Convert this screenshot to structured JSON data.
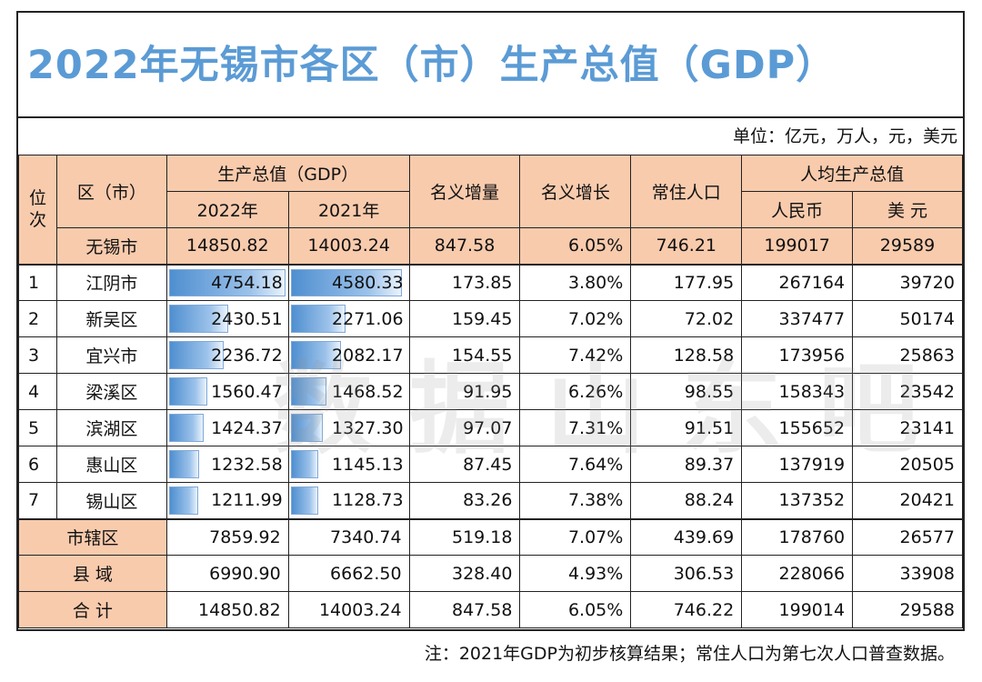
{
  "title": "2022年无锡市各区（市）生产总值（GDP）",
  "unit_note": "单位：亿元，万人，元，美元",
  "headers": {
    "rank": "位次",
    "district": "区（市）",
    "gdp": "生产总值（GDP）",
    "y2022": "2022年",
    "y2021": "2021年",
    "nominal_increase": "名义增量",
    "nominal_growth": "名义增长",
    "population": "常住人口",
    "per_capita": "人均生产总值",
    "rmb": "人民币",
    "usd": "美 元"
  },
  "city_total": {
    "name": "无锡市",
    "gdp2022": "14850.82",
    "gdp2021": "14003.24",
    "inc": "847.58",
    "growth": "6.05%",
    "pop": "746.21",
    "rmb": "199017",
    "usd": "29589"
  },
  "rows": [
    {
      "rank": "1",
      "name": "江阴市",
      "gdp2022": "4754.18",
      "gdp2021": "4580.33",
      "inc": "173.85",
      "growth": "3.80%",
      "pop": "177.95",
      "rmb": "267164",
      "usd": "39720"
    },
    {
      "rank": "2",
      "name": "新吴区",
      "gdp2022": "2430.51",
      "gdp2021": "2271.06",
      "inc": "159.45",
      "growth": "7.02%",
      "pop": "72.02",
      "rmb": "337477",
      "usd": "50174"
    },
    {
      "rank": "3",
      "name": "宜兴市",
      "gdp2022": "2236.72",
      "gdp2021": "2082.17",
      "inc": "154.55",
      "growth": "7.42%",
      "pop": "128.58",
      "rmb": "173956",
      "usd": "25863"
    },
    {
      "rank": "4",
      "name": "梁溪区",
      "gdp2022": "1560.47",
      "gdp2021": "1468.52",
      "inc": "91.95",
      "growth": "6.26%",
      "pop": "98.55",
      "rmb": "158343",
      "usd": "23542"
    },
    {
      "rank": "5",
      "name": "滨湖区",
      "gdp2022": "1424.37",
      "gdp2021": "1327.30",
      "inc": "97.07",
      "growth": "7.31%",
      "pop": "91.51",
      "rmb": "155652",
      "usd": "23141"
    },
    {
      "rank": "6",
      "name": "惠山区",
      "gdp2022": "1232.58",
      "gdp2021": "1145.13",
      "inc": "87.45",
      "growth": "7.64%",
      "pop": "89.37",
      "rmb": "137919",
      "usd": "20505"
    },
    {
      "rank": "7",
      "name": "锡山区",
      "gdp2022": "1211.99",
      "gdp2021": "1128.73",
      "inc": "83.26",
      "growth": "7.38%",
      "pop": "88.24",
      "rmb": "137352",
      "usd": "20421"
    }
  ],
  "summary": [
    {
      "name": "市辖区",
      "gdp2022": "7859.92",
      "gdp2021": "7340.74",
      "inc": "519.18",
      "growth": "7.07%",
      "pop": "439.69",
      "rmb": "178760",
      "usd": "26577"
    },
    {
      "name": "县 域",
      "gdp2022": "6990.90",
      "gdp2021": "6662.50",
      "inc": "328.40",
      "growth": "4.93%",
      "pop": "306.53",
      "rmb": "228066",
      "usd": "33908"
    },
    {
      "name": "合 计",
      "gdp2022": "14850.82",
      "gdp2021": "14003.24",
      "inc": "847.58",
      "growth": "6.05%",
      "pop": "746.22",
      "rmb": "199014",
      "usd": "29588"
    }
  ],
  "footnote": "注：2021年GDP为初步核算结果；常住人口为第七次人口普查数据。",
  "watermark": "数据山东吧",
  "chart_data": {
    "type": "table",
    "title": "2022年无锡市各区（市）生产总值（GDP）",
    "categories": [
      "江阴市",
      "新吴区",
      "宜兴市",
      "梁溪区",
      "滨湖区",
      "惠山区",
      "锡山区"
    ],
    "series": [
      {
        "name": "2022年",
        "values": [
          4754.18,
          2430.51,
          2236.72,
          1560.47,
          1424.37,
          1232.58,
          1211.99
        ]
      },
      {
        "name": "2021年",
        "values": [
          4580.33,
          2271.06,
          2082.17,
          1468.52,
          1327.3,
          1145.13,
          1128.73
        ]
      }
    ],
    "bar_max": 4754.18
  }
}
